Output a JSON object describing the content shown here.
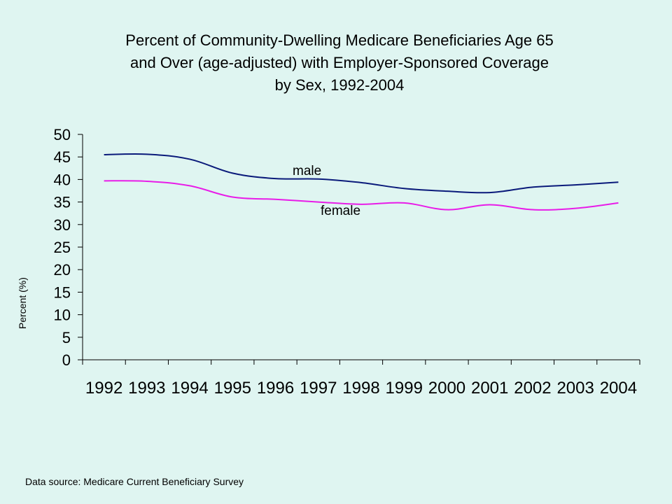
{
  "chart_data": {
    "type": "line",
    "title_lines": [
      "Percent of Community-Dwelling Medicare Beneficiaries Age 65",
      "and Over (age-adjusted) with Employer-Sponsored Coverage",
      "by Sex, 1992-2004"
    ],
    "xlabel": "",
    "ylabel": "Percent (%)",
    "ylim": [
      0,
      50
    ],
    "yticks": [
      "0",
      "5",
      "10",
      "15",
      "20",
      "25",
      "30",
      "35",
      "40",
      "45",
      "50"
    ],
    "categories": [
      "1992",
      "1993",
      "1994",
      "1995",
      "1996",
      "1997",
      "1998",
      "1999",
      "2000",
      "2001",
      "2002",
      "2003",
      "2004"
    ],
    "series": [
      {
        "name": "male",
        "color": "#0a1a7a",
        "values": [
          45.5,
          45.6,
          44.5,
          41.4,
          40.2,
          40.1,
          39.3,
          38.0,
          37.4,
          37.1,
          38.3,
          38.8,
          39.4
        ]
      },
      {
        "name": "female",
        "color": "#e81ce8",
        "values": [
          39.7,
          39.6,
          38.6,
          36.1,
          35.6,
          35.0,
          34.5,
          34.8,
          33.3,
          34.4,
          33.3,
          33.6,
          34.8
        ]
      }
    ],
    "grid": false,
    "legend": "inline labels"
  },
  "footer": {
    "source": "Data source: Medicare Current Beneficiary Survey"
  }
}
